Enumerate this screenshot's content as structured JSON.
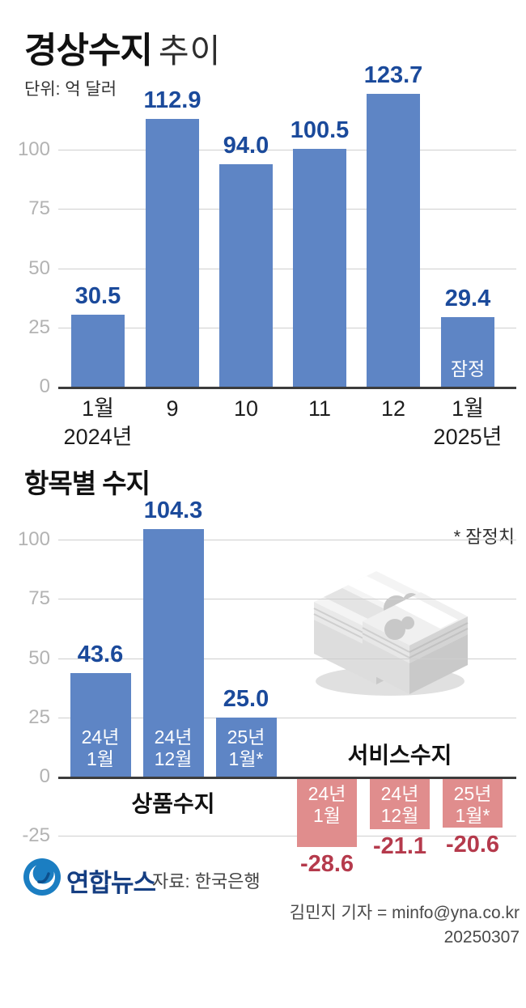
{
  "header": {
    "title_bold": "경상수지",
    "title_light": "추이",
    "unit": "단위: 억 달러"
  },
  "chart_data": [
    {
      "type": "bar",
      "title": "경상수지 추이",
      "ylabel": "억 달러",
      "categories": [
        [
          "1월",
          "2024년"
        ],
        [
          "9"
        ],
        [
          "10"
        ],
        [
          "11"
        ],
        [
          "12"
        ],
        [
          "1월",
          "2025년"
        ]
      ],
      "values": [
        30.5,
        112.9,
        94.0,
        100.5,
        123.7,
        29.4
      ],
      "bar_annotations": [
        null,
        null,
        null,
        null,
        null,
        "잠정"
      ],
      "yticks": [
        0,
        25,
        50,
        75,
        100
      ],
      "ylim": [
        0,
        130
      ],
      "grid": true,
      "legend": "none",
      "bar_color": "#5e85c5",
      "value_color": "#1b4a9b"
    },
    {
      "type": "bar",
      "title": "항목별 수지",
      "note": "* 잠정치",
      "yticks": [
        -25,
        0,
        25,
        50,
        75,
        100
      ],
      "ylim": [
        -35,
        115
      ],
      "grid": true,
      "legend": "none",
      "series": [
        {
          "name": "상품수지",
          "color": "#5e85c5",
          "value_color": "#1b4a9b",
          "categories": [
            [
              "24년",
              "1월"
            ],
            [
              "24년",
              "12월"
            ],
            [
              "25년",
              "1월*"
            ]
          ],
          "values": [
            43.6,
            104.3,
            25.0
          ]
        },
        {
          "name": "서비스수지",
          "color": "#e08d8d",
          "value_color": "#b53a4c",
          "categories": [
            [
              "24년",
              "1월"
            ],
            [
              "24년",
              "12월"
            ],
            [
              "25년",
              "1월*"
            ]
          ],
          "values": [
            -28.6,
            -21.1,
            -20.6
          ]
        }
      ]
    }
  ],
  "footer": {
    "logo_text": "연합뉴스",
    "source": "자료: 한국은행",
    "credit": "김민지 기자 = minfo@yna.co.kr",
    "date": "20250307"
  },
  "colors": {
    "bar_blue": "#5e85c5",
    "bar_red": "#e08d8d",
    "value_blue": "#1b4a9b",
    "value_red": "#b53a4c",
    "gridline": "#cfcfcf",
    "axis": "#3c3c3c",
    "tick_label": "#b3b3b3",
    "logo_blue": "#1b7ec2",
    "logo_navy": "#153e82"
  }
}
